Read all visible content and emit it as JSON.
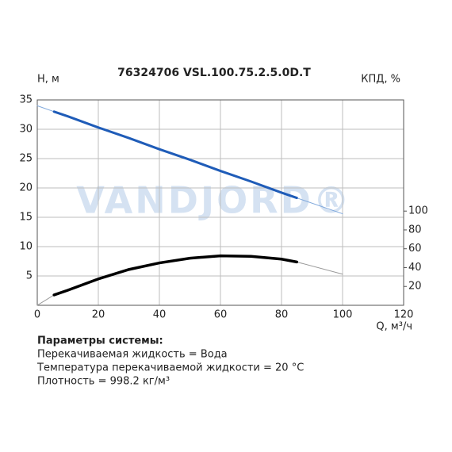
{
  "chart_data": {
    "type": "line",
    "title": "76324706 VSL.100.75.2.5.0D.T",
    "ylabel": "H, м",
    "y2label": "КПД, %",
    "xlabel": "Q, м³/ч",
    "watermark": "VANDJORD®",
    "x": [
      0,
      5.5,
      10,
      20,
      30,
      40,
      50,
      60,
      70,
      80,
      85,
      100
    ],
    "series": [
      {
        "color": "#7fa8dc",
        "line_width": 1,
        "values": [
          34,
          33,
          32.2,
          30.3,
          28.5,
          26.6,
          24.8,
          22.9,
          21.1,
          19.2,
          18.3,
          15.6
        ]
      },
      {
        "color": "#1f5cb8",
        "line_width": 3,
        "values": [
          null,
          33,
          32.2,
          30.3,
          28.5,
          26.6,
          24.8,
          22.9,
          21.1,
          19.2,
          18.3,
          null
        ]
      },
      {
        "color": "#9a9a9a",
        "line_width": 1,
        "axis": "y2",
        "values": [
          0,
          11,
          16,
          28,
          38,
          45,
          50,
          52.5,
          52,
          49,
          46,
          33
        ]
      },
      {
        "color": "#000000",
        "line_width": 3.5,
        "axis": "y2",
        "values": [
          null,
          11,
          16,
          28,
          38,
          45,
          50,
          52.5,
          52,
          49,
          46,
          null
        ]
      }
    ],
    "xlim": [
      0,
      120
    ],
    "xticks": [
      0,
      20,
      40,
      60,
      80,
      100,
      120
    ],
    "ylim": [
      0,
      35
    ],
    "yticks": [
      5,
      10,
      15,
      20,
      25,
      30,
      35
    ],
    "y2lim": [
      0,
      218
    ],
    "y2ticks": [
      20,
      40,
      60,
      80,
      100
    ],
    "grid": true,
    "notes": {
      "heading": "Параметры системы:",
      "lines": [
        "Перекачиваемая жидкость = Вода",
        "Температура перекачиваемой жидкости = 20 °C",
        "Плотность = 998.2 кг/м³"
      ]
    }
  }
}
